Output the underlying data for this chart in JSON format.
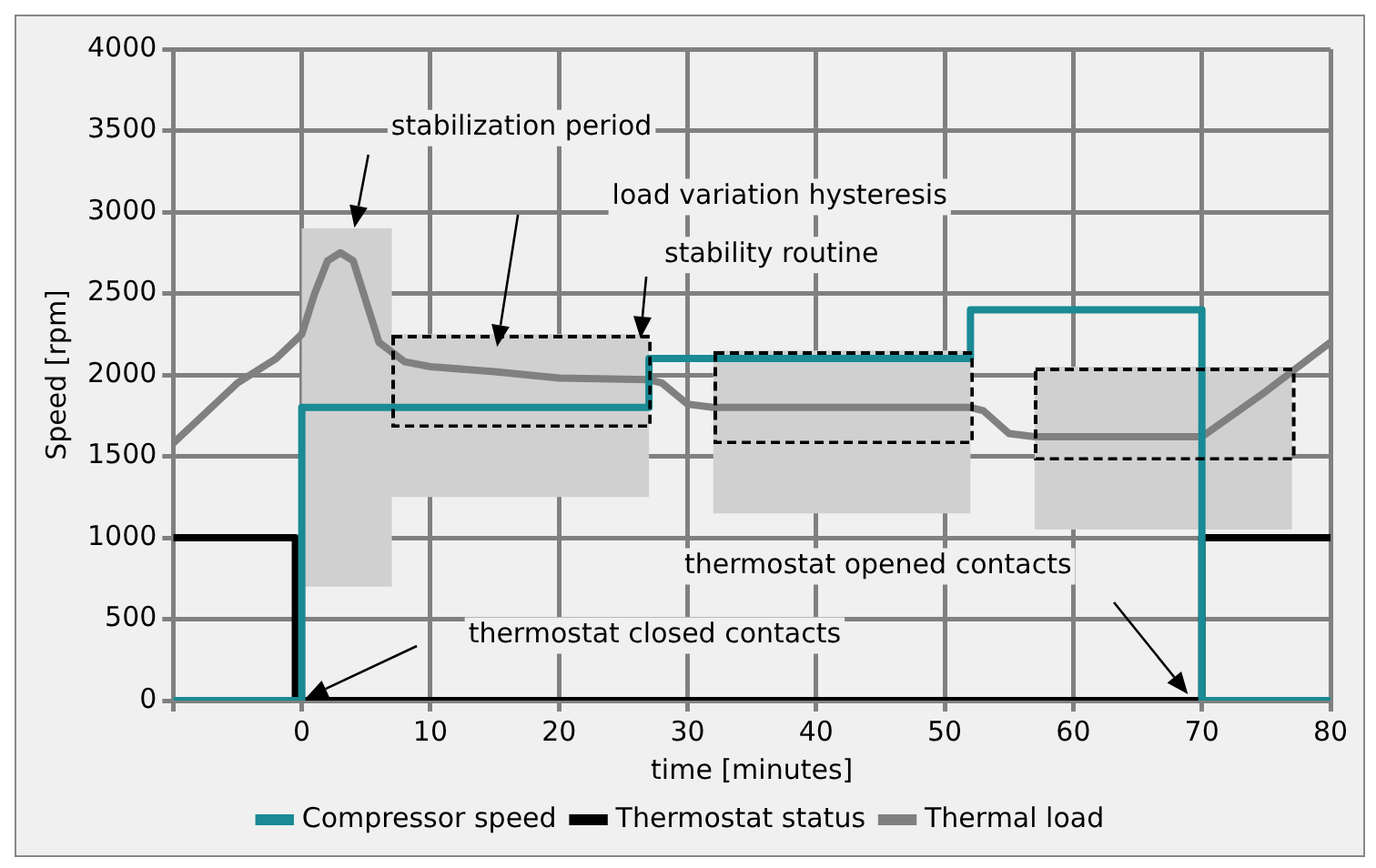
{
  "chart_data": {
    "type": "line",
    "xlabel": "time [minutes]",
    "ylabel": "Speed [rpm]",
    "xlim": [
      -10,
      80
    ],
    "xticks": [
      {
        "value": -10,
        "label": null
      },
      0,
      10,
      20,
      30,
      40,
      50,
      60,
      70,
      80
    ],
    "ylim": [
      0,
      4000
    ],
    "yticks": [
      0,
      500,
      1000,
      1500,
      2000,
      2500,
      3000,
      3500,
      4000
    ],
    "grid": true,
    "legend": "bottom",
    "marker": "none",
    "series": [
      {
        "name": "Compressor speed",
        "type": "step",
        "color": "#1a8a94",
        "x": [
          -10,
          0,
          27,
          52,
          70,
          80
        ],
        "values": [
          0,
          1800,
          2100,
          2400,
          0,
          0
        ]
      },
      {
        "name": "Thermostat status",
        "type": "step",
        "color": "#000000",
        "x": [
          -10,
          -0.5,
          70,
          80
        ],
        "values": [
          1000,
          0,
          1000,
          1000
        ]
      },
      {
        "name": "Thermal load",
        "type": "line",
        "color": "#808080",
        "x": [
          -10,
          -5,
          -2,
          0,
          1,
          2,
          3,
          4,
          5,
          6,
          8,
          10,
          15,
          20,
          27,
          28,
          30,
          32,
          52,
          53,
          55,
          57,
          70,
          75,
          80
        ],
        "values": [
          1580,
          1950,
          2100,
          2250,
          2500,
          2700,
          2750,
          2700,
          2450,
          2200,
          2080,
          2050,
          2020,
          1980,
          1970,
          1950,
          1820,
          1800,
          1800,
          1780,
          1640,
          1620,
          1620,
          1900,
          2200
        ]
      },
      {
        "type": "area",
        "color": "#d0d0d0",
        "x": [
          0,
          0,
          7,
          7,
          27,
          27,
          7,
          7,
          0
        ],
        "values": [
          700,
          2900,
          2900,
          2250,
          2250,
          1250,
          1250,
          700,
          700
        ]
      },
      {
        "type": "area",
        "color": "#d0d0d0",
        "x": [
          32,
          32,
          52,
          52,
          32
        ],
        "values": [
          1150,
          2150,
          2150,
          1150,
          1150
        ]
      },
      {
        "type": "area",
        "color": "#d0d0d0",
        "x": [
          57,
          57,
          77,
          77,
          57
        ],
        "values": [
          1050,
          2050,
          2050,
          1050,
          1050
        ]
      }
    ],
    "annotations": [
      "stabilization period",
      "load variation hysteresis",
      "stability routine",
      "thermostat closed contacts",
      "thermostat opened contacts"
    ]
  }
}
